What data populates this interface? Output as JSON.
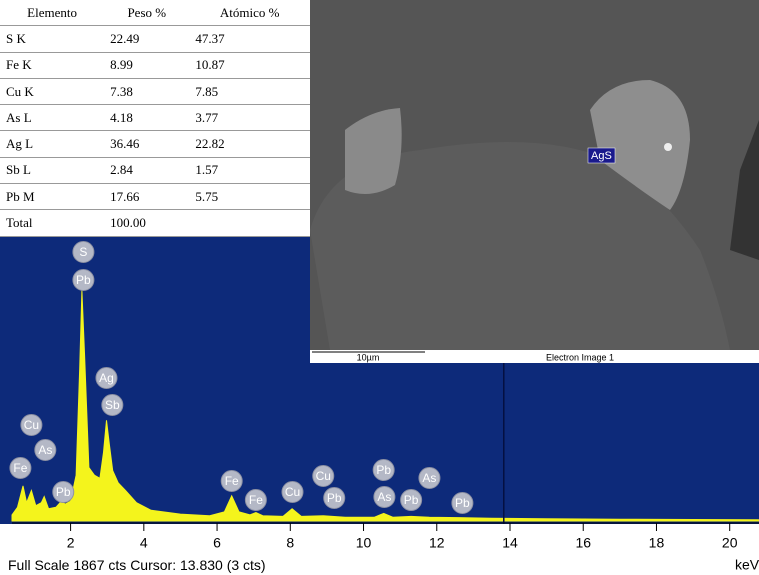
{
  "table": {
    "header": [
      "Elemento",
      "Peso %",
      "Atómico %"
    ],
    "rows": [
      [
        "S K",
        "22.49",
        "47.37"
      ],
      [
        "Fe K",
        "8.99",
        "10.87"
      ],
      [
        "Cu K",
        "7.38",
        "7.85"
      ],
      [
        "As L",
        "4.18",
        "3.77"
      ],
      [
        "Ag L",
        "36.46",
        "22.82"
      ],
      [
        "Sb L",
        "2.84",
        "1.57"
      ],
      [
        "Pb M",
        "17.66",
        "5.75"
      ],
      [
        "Total",
        "100.00"
      ]
    ]
  },
  "image": {
    "marker_label": "AgS",
    "scale_bar": "10µm",
    "caption": "Electron Image 1"
  },
  "chart_data": {
    "type": "line",
    "color": "#f4f41c",
    "x": [
      0.4,
      0.55,
      0.7,
      0.8,
      0.93,
      1.05,
      1.2,
      1.28,
      1.4,
      1.6,
      1.75,
      1.85,
      2.0,
      2.15,
      2.25,
      2.31,
      2.38,
      2.5,
      2.65,
      2.8,
      2.9,
      2.98,
      3.06,
      3.15,
      3.3,
      3.5,
      3.8,
      4.2,
      5.0,
      5.8,
      6.2,
      6.4,
      6.6,
      6.9,
      7.06,
      7.25,
      7.8,
      8.05,
      8.3,
      8.9,
      9.5,
      10.3,
      10.55,
      10.8,
      11.3,
      11.8,
      12.6,
      13.5,
      15,
      17,
      19,
      20.8
    ],
    "values": [
      40,
      90,
      230,
      120,
      200,
      100,
      120,
      160,
      80,
      90,
      130,
      110,
      130,
      300,
      1000,
      1510,
      1100,
      350,
      300,
      280,
      450,
      660,
      500,
      330,
      250,
      200,
      120,
      70,
      45,
      35,
      60,
      165,
      60,
      40,
      55,
      35,
      30,
      80,
      30,
      35,
      25,
      25,
      50,
      25,
      30,
      25,
      22,
      18,
      15,
      12,
      10,
      8
    ],
    "xlim": [
      0.4,
      20.8
    ],
    "ylim": [
      0,
      1867
    ],
    "xticks": [
      2,
      4,
      6,
      8,
      10,
      12,
      14,
      16,
      18,
      20
    ],
    "x_unit": "keV",
    "full_scale_label": "Full Scale",
    "counts_unit": "cts",
    "cursor_label": "Cursor:",
    "cursor": {
      "value": 13.83,
      "label": "13.830"
    },
    "cursor_counts": "(3 cts)",
    "peak_labels": [
      {
        "label": "S",
        "energy": 2.35
      },
      {
        "label": "Pb",
        "energy": 2.35
      },
      {
        "label": "Ag",
        "energy": 2.98
      },
      {
        "label": "Sb",
        "energy": 3.14
      },
      {
        "label": "Cu",
        "energy": 0.93
      },
      {
        "label": "As",
        "energy": 1.31
      },
      {
        "label": "Fe",
        "energy": 0.63
      },
      {
        "label": "Pb",
        "energy": 1.8
      },
      {
        "label": "Fe",
        "energy": 6.4
      },
      {
        "label": "Fe",
        "energy": 7.06
      },
      {
        "label": "Cu",
        "energy": 8.06
      },
      {
        "label": "Cu",
        "energy": 8.9
      },
      {
        "label": "Pb",
        "energy": 9.2
      },
      {
        "label": "Pb",
        "energy": 10.55
      },
      {
        "label": "As",
        "energy": 10.57
      },
      {
        "label": "Pb",
        "energy": 11.3
      },
      {
        "label": "As",
        "energy": 11.8
      },
      {
        "label": "Pb",
        "energy": 12.7
      }
    ]
  }
}
